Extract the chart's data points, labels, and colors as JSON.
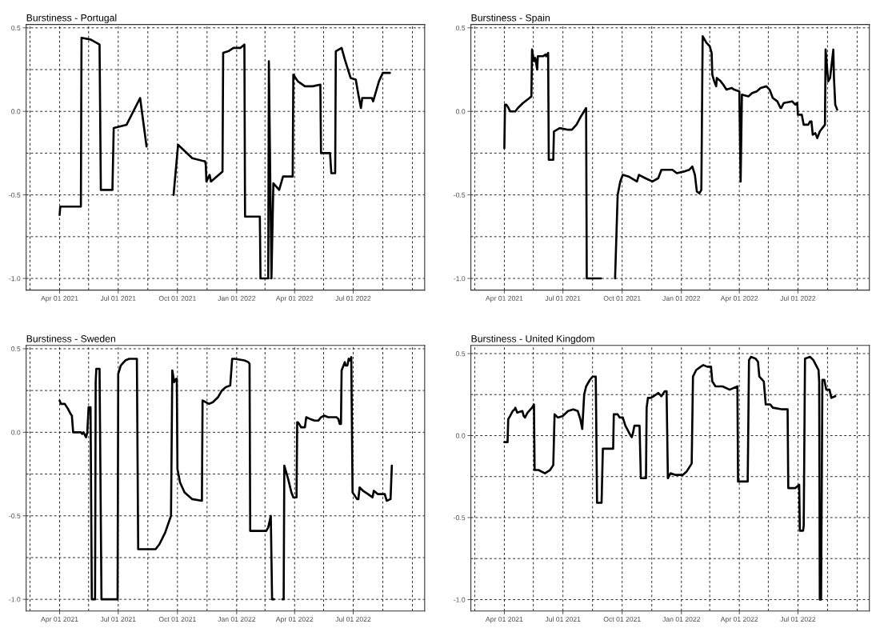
{
  "chart_data": [
    {
      "type": "line",
      "title": "Burstiness - Portugal",
      "color": "#000000",
      "grid": true,
      "line_style": "solid",
      "marker": "none",
      "xlim": [
        "2021-02-08",
        "2022-10-20"
      ],
      "ylim": [
        -1.07,
        0.52
      ],
      "xticks": [
        {
          "value": "2021-02-14",
          "label": null
        },
        {
          "value": "2021-04-01",
          "label": "Apr 01 2021"
        },
        {
          "value": "2021-05-16",
          "label": null
        },
        {
          "value": "2021-07-01",
          "label": "Jul 01 2021"
        },
        {
          "value": "2021-08-16",
          "label": null
        },
        {
          "value": "2021-10-01",
          "label": "Oct 01 2021"
        },
        {
          "value": "2021-11-16",
          "label": null
        },
        {
          "value": "2022-01-01",
          "label": "Jan 01 2022"
        },
        {
          "value": "2022-02-14",
          "label": null
        },
        {
          "value": "2022-04-01",
          "label": "Apr 01 2022"
        },
        {
          "value": "2022-05-16",
          "label": null
        },
        {
          "value": "2022-07-01",
          "label": "Jul 01 2022"
        },
        {
          "value": "2022-08-16",
          "label": null
        },
        {
          "value": "2022-10-01",
          "label": null
        }
      ],
      "yticks": [
        {
          "value": -1.0,
          "label": "-1.0"
        },
        {
          "value": -0.75,
          "label": null
        },
        {
          "value": -0.5,
          "label": "-0.5"
        },
        {
          "value": -0.25,
          "label": null
        },
        {
          "value": 0.0,
          "label": "0.0"
        },
        {
          "value": 0.25,
          "label": null
        },
        {
          "value": 0.5,
          "label": "0.5"
        }
      ],
      "x": [
        "2021-04-01",
        "2021-04-02",
        "2021-05-04",
        "2021-05-05",
        "2021-05-19",
        "2021-06-02",
        "2021-06-04",
        "2021-06-22",
        "2021-06-24",
        "2021-07-14",
        "2021-08-04",
        "2021-08-14",
        "2021-09-01",
        "2021-09-25",
        "2021-10-02",
        "2021-10-24",
        "2021-11-13",
        "2021-11-14",
        "2021-11-15",
        "2021-11-20",
        "2021-11-22",
        "2021-12-10",
        "2021-12-11",
        "2021-12-19",
        "2021-12-27",
        "2022-01-07",
        "2022-01-13",
        "2022-01-14",
        "2022-02-06",
        "2022-02-07",
        "2022-02-19",
        "2022-02-20",
        "2022-02-24",
        "2022-02-27",
        "2022-03-08",
        "2022-03-14",
        "2022-03-29",
        "2022-03-30",
        "2022-04-06",
        "2022-04-17",
        "2022-04-29",
        "2022-05-11",
        "2022-05-12",
        "2022-05-26",
        "2022-05-28",
        "2022-06-03",
        "2022-06-04",
        "2022-06-13",
        "2022-06-18",
        "2022-06-27",
        "2022-07-05",
        "2022-07-09",
        "2022-07-13",
        "2022-07-15",
        "2022-07-30",
        "2022-08-01",
        "2022-08-10",
        "2022-08-16",
        "2022-08-27"
      ],
      "values": [
        -0.62,
        -0.57,
        -0.57,
        0.44,
        0.43,
        0.4,
        -0.47,
        -0.47,
        -0.1,
        -0.08,
        0.08,
        -0.21,
        null,
        -0.5,
        -0.2,
        -0.28,
        -0.3,
        -0.32,
        -0.42,
        -0.38,
        -0.42,
        -0.36,
        0.35,
        0.36,
        0.38,
        0.38,
        0.4,
        -0.63,
        -0.63,
        -1.0,
        -1.0,
        0.3,
        -1.0,
        -0.43,
        -0.47,
        -0.39,
        -0.39,
        0.22,
        0.18,
        0.15,
        0.15,
        0.16,
        -0.25,
        -0.25,
        -0.37,
        -0.37,
        0.36,
        0.38,
        0.31,
        0.2,
        0.19,
        0.1,
        0.02,
        0.08,
        0.08,
        0.06,
        0.18,
        0.23,
        0.23
      ]
    },
    {
      "type": "line",
      "title": "Burstiness - Spain",
      "color": "#000000",
      "grid": true,
      "line_style": "solid",
      "marker": "none",
      "xlim": [
        "2021-02-08",
        "2022-10-20"
      ],
      "ylim": [
        -1.07,
        0.52
      ],
      "xticks": [
        {
          "value": "2021-02-14",
          "label": null
        },
        {
          "value": "2021-04-01",
          "label": "Apr 01 2021"
        },
        {
          "value": "2021-05-16",
          "label": null
        },
        {
          "value": "2021-07-01",
          "label": "Jul 01 2021"
        },
        {
          "value": "2021-08-16",
          "label": null
        },
        {
          "value": "2021-10-01",
          "label": "Oct 01 2021"
        },
        {
          "value": "2021-11-16",
          "label": null
        },
        {
          "value": "2022-01-01",
          "label": "Jan 01 2022"
        },
        {
          "value": "2022-02-14",
          "label": null
        },
        {
          "value": "2022-04-01",
          "label": "Apr 01 2022"
        },
        {
          "value": "2022-05-16",
          "label": null
        },
        {
          "value": "2022-07-01",
          "label": "Jul 01 2022"
        },
        {
          "value": "2022-08-16",
          "label": null
        },
        {
          "value": "2022-10-01",
          "label": null
        }
      ],
      "yticks": [
        {
          "value": -1.0,
          "label": "-1.0"
        },
        {
          "value": -0.75,
          "label": null
        },
        {
          "value": -0.5,
          "label": "-0.5"
        },
        {
          "value": -0.25,
          "label": null
        },
        {
          "value": 0.0,
          "label": "0.0"
        },
        {
          "value": 0.25,
          "label": null
        },
        {
          "value": 0.5,
          "label": "0.5"
        }
      ],
      "x": [
        "2021-04-01",
        "2021-04-02",
        "2021-04-04",
        "2021-04-06",
        "2021-04-10",
        "2021-04-18",
        "2021-04-22",
        "2021-04-30",
        "2021-05-10",
        "2021-05-13",
        "2021-05-14",
        "2021-05-17",
        "2021-05-19",
        "2021-05-22",
        "2021-05-23",
        "2021-05-31",
        "2021-06-04",
        "2021-06-05",
        "2021-06-08",
        "2021-06-09",
        "2021-06-16",
        "2021-06-17",
        "2021-06-26",
        "2021-07-09",
        "2021-07-15",
        "2021-07-22",
        "2021-07-29",
        "2021-08-06",
        "2021-08-07",
        "2021-08-29",
        "2021-09-10",
        "2021-09-20",
        "2021-09-24",
        "2021-09-28",
        "2021-10-02",
        "2021-10-11",
        "2021-10-24",
        "2021-10-27",
        "2021-11-06",
        "2021-11-17",
        "2021-11-26",
        "2021-12-01",
        "2021-12-18",
        "2021-12-25",
        "2022-01-05",
        "2022-01-13",
        "2022-01-18",
        "2022-01-22",
        "2022-01-25",
        "2022-01-29",
        "2022-02-01",
        "2022-02-03",
        "2022-02-09",
        "2022-02-14",
        "2022-02-17",
        "2022-02-18",
        "2022-02-21",
        "2022-02-24",
        "2022-02-25",
        "2022-03-03",
        "2022-03-07",
        "2022-03-12",
        "2022-03-20",
        "2022-03-24",
        "2022-04-01",
        "2022-04-03",
        "2022-04-05",
        "2022-04-15",
        "2022-04-21",
        "2022-04-28",
        "2022-05-04",
        "2022-05-13",
        "2022-05-18",
        "2022-05-23",
        "2022-05-30",
        "2022-06-04",
        "2022-06-05",
        "2022-06-09",
        "2022-06-22",
        "2022-06-27",
        "2022-06-29",
        "2022-06-30",
        "2022-07-01",
        "2022-07-07",
        "2022-07-10",
        "2022-07-17",
        "2022-07-20",
        "2022-07-22",
        "2022-07-24",
        "2022-07-28",
        "2022-07-31",
        "2022-08-04",
        "2022-08-12",
        "2022-08-13",
        "2022-08-17",
        "2022-08-20",
        "2022-08-25",
        "2022-08-26",
        "2022-08-28",
        "2022-08-31"
      ],
      "values": [
        -0.22,
        0.04,
        0.04,
        0.03,
        0.0,
        0.0,
        0.02,
        0.05,
        0.08,
        0.09,
        0.37,
        0.3,
        0.32,
        0.25,
        0.33,
        0.33,
        0.34,
        0.33,
        0.35,
        -0.29,
        -0.29,
        -0.12,
        -0.1,
        -0.11,
        -0.11,
        -0.08,
        -0.03,
        0.02,
        -1.0,
        -1.0,
        null,
        -1.0,
        -0.5,
        -0.42,
        -0.38,
        -0.39,
        -0.42,
        -0.38,
        -0.4,
        -0.42,
        -0.4,
        -0.35,
        -0.35,
        -0.37,
        -0.36,
        -0.35,
        -0.33,
        -0.38,
        -0.48,
        -0.49,
        -0.47,
        0.45,
        0.41,
        0.39,
        0.35,
        0.22,
        0.18,
        0.15,
        0.2,
        0.18,
        0.16,
        0.13,
        0.14,
        0.13,
        0.12,
        -0.42,
        0.1,
        0.09,
        0.11,
        0.12,
        0.14,
        0.15,
        0.13,
        0.08,
        0.06,
        0.02,
        0.02,
        0.05,
        0.06,
        0.04,
        0.05,
        0.05,
        -0.02,
        -0.02,
        -0.08,
        -0.08,
        -0.06,
        -0.06,
        -0.14,
        -0.13,
        -0.16,
        -0.12,
        -0.08,
        0.37,
        0.18,
        0.2,
        0.37,
        0.2,
        0.04,
        0.01
      ]
    },
    {
      "type": "line",
      "title": "Burstiness - Sweden",
      "color": "#000000",
      "grid": true,
      "line_style": "solid",
      "marker": "none",
      "xlim": [
        "2021-02-08",
        "2022-10-20"
      ],
      "ylim": [
        -1.07,
        0.52
      ],
      "xticks": [
        {
          "value": "2021-02-14",
          "label": null
        },
        {
          "value": "2021-04-01",
          "label": "Apr 01 2021"
        },
        {
          "value": "2021-05-16",
          "label": null
        },
        {
          "value": "2021-07-01",
          "label": "Jul 01 2021"
        },
        {
          "value": "2021-08-16",
          "label": null
        },
        {
          "value": "2021-10-01",
          "label": "Oct 01 2021"
        },
        {
          "value": "2021-11-16",
          "label": null
        },
        {
          "value": "2022-01-01",
          "label": "Jan 01 2022"
        },
        {
          "value": "2022-02-14",
          "label": null
        },
        {
          "value": "2022-04-01",
          "label": "Apr 01 2022"
        },
        {
          "value": "2022-05-16",
          "label": null
        },
        {
          "value": "2022-07-01",
          "label": "Jul 01 2022"
        },
        {
          "value": "2022-08-16",
          "label": null
        },
        {
          "value": "2022-10-01",
          "label": null
        }
      ],
      "yticks": [
        {
          "value": -1.0,
          "label": "-1.0"
        },
        {
          "value": -0.75,
          "label": null
        },
        {
          "value": -0.5,
          "label": "-0.5"
        },
        {
          "value": -0.25,
          "label": null
        },
        {
          "value": 0.0,
          "label": "0.0"
        },
        {
          "value": 0.25,
          "label": null
        },
        {
          "value": 0.5,
          "label": "0.5"
        }
      ],
      "x": [
        "2021-04-01",
        "2021-04-03",
        "2021-04-09",
        "2021-04-14",
        "2021-04-18",
        "2021-04-20",
        "2021-04-22",
        "2021-05-04",
        "2021-05-06",
        "2021-05-08",
        "2021-05-12",
        "2021-05-14",
        "2021-05-16",
        "2021-05-19",
        "2021-05-21",
        "2021-05-26",
        "2021-05-27",
        "2021-05-28",
        "2021-06-02",
        "2021-06-05",
        "2021-06-30",
        "2021-07-01",
        "2021-07-05",
        "2021-07-12",
        "2021-07-18",
        "2021-07-30",
        "2021-08-01",
        "2021-08-28",
        "2021-09-03",
        "2021-09-12",
        "2021-09-21",
        "2021-09-23",
        "2021-09-26",
        "2021-09-29",
        "2021-09-30",
        "2021-10-01",
        "2021-10-05",
        "2021-10-12",
        "2021-10-24",
        "2021-11-08",
        "2021-11-09",
        "2021-11-19",
        "2021-11-25",
        "2021-12-03",
        "2021-12-09",
        "2021-12-15",
        "2021-12-22",
        "2021-12-25",
        "2021-12-29",
        "2022-01-13",
        "2022-01-19",
        "2022-01-21",
        "2022-01-22",
        "2022-02-16",
        "2022-02-19",
        "2022-02-23",
        "2022-02-25",
        "2022-02-28",
        "2022-03-06",
        "2022-03-13",
        "2022-03-15",
        "2022-03-16",
        "2022-03-22",
        "2022-03-27",
        "2022-03-30",
        "2022-04-04",
        "2022-04-05",
        "2022-04-06",
        "2022-04-08",
        "2022-04-11",
        "2022-04-17",
        "2022-04-19",
        "2022-04-25",
        "2022-05-02",
        "2022-05-08",
        "2022-05-12",
        "2022-05-17",
        "2022-05-23",
        "2022-06-05",
        "2022-06-08",
        "2022-06-10",
        "2022-06-12",
        "2022-06-13",
        "2022-06-18",
        "2022-06-19",
        "2022-06-22",
        "2022-06-24",
        "2022-06-26",
        "2022-06-28",
        "2022-06-30",
        "2022-07-07",
        "2022-07-09",
        "2022-07-11",
        "2022-07-16",
        "2022-07-24",
        "2022-07-31",
        "2022-08-02",
        "2022-08-08",
        "2022-08-19",
        "2022-08-22",
        "2022-08-28",
        "2022-08-30"
      ],
      "values": [
        0.19,
        0.17,
        0.17,
        0.14,
        0.11,
        0.1,
        0.0,
        0.0,
        -0.01,
        0.0,
        -0.03,
        0.0,
        0.15,
        0.15,
        -1.0,
        -1.0,
        0.3,
        0.38,
        0.38,
        -1.0,
        -1.0,
        0.35,
        0.4,
        0.43,
        0.44,
        0.44,
        -0.7,
        -0.7,
        -0.67,
        -0.6,
        -0.5,
        0.37,
        0.3,
        0.32,
        0.32,
        -0.22,
        -0.3,
        -0.36,
        -0.4,
        -0.41,
        0.19,
        0.17,
        0.18,
        0.21,
        0.25,
        0.27,
        0.28,
        0.44,
        0.44,
        0.43,
        0.42,
        0.41,
        -0.59,
        -0.59,
        -0.57,
        -0.5,
        -1.0,
        -1.0,
        null,
        -1.0,
        -1.0,
        -0.2,
        -0.28,
        -0.36,
        -0.39,
        -0.39,
        0.06,
        0.06,
        0.05,
        0.03,
        0.03,
        0.09,
        0.08,
        0.07,
        0.07,
        0.09,
        0.1,
        0.09,
        0.09,
        0.08,
        0.05,
        0.05,
        0.37,
        0.42,
        0.4,
        0.4,
        0.44,
        0.43,
        0.45,
        -0.36,
        -0.4,
        -0.4,
        -0.33,
        -0.35,
        -0.37,
        -0.39,
        -0.35,
        -0.37,
        -0.37,
        -0.41,
        -0.4,
        -0.2
      ]
    },
    {
      "type": "line",
      "title": "Burstiness - United Kingdom",
      "color": "#000000",
      "grid": true,
      "line_style": "solid",
      "marker": "none",
      "xlim": [
        "2021-02-08",
        "2022-10-20"
      ],
      "ylim": [
        -1.07,
        0.55
      ],
      "xticks": [
        {
          "value": "2021-02-14",
          "label": null
        },
        {
          "value": "2021-04-01",
          "label": "Apr 01 2021"
        },
        {
          "value": "2021-05-16",
          "label": null
        },
        {
          "value": "2021-07-01",
          "label": "Jul 01 2021"
        },
        {
          "value": "2021-08-16",
          "label": null
        },
        {
          "value": "2021-10-01",
          "label": "Oct 01 2021"
        },
        {
          "value": "2021-11-16",
          "label": null
        },
        {
          "value": "2022-01-01",
          "label": "Jan 01 2022"
        },
        {
          "value": "2022-02-14",
          "label": null
        },
        {
          "value": "2022-04-01",
          "label": "Apr 01 2022"
        },
        {
          "value": "2022-05-16",
          "label": null
        },
        {
          "value": "2022-07-01",
          "label": "Jul 01 2022"
        },
        {
          "value": "2022-08-16",
          "label": null
        },
        {
          "value": "2022-10-01",
          "label": null
        }
      ],
      "yticks": [
        {
          "value": -1.0,
          "label": "-1.0"
        },
        {
          "value": -0.75,
          "label": null
        },
        {
          "value": -0.5,
          "label": "-0.5"
        },
        {
          "value": -0.25,
          "label": null
        },
        {
          "value": 0.0,
          "label": "0.0"
        },
        {
          "value": 0.25,
          "label": null
        },
        {
          "value": 0.5,
          "label": "0.5"
        }
      ],
      "x": [
        "2021-04-01",
        "2021-04-06",
        "2021-04-07",
        "2021-04-10",
        "2021-04-14",
        "2021-04-17",
        "2021-04-18",
        "2021-04-21",
        "2021-04-29",
        "2021-05-01",
        "2021-05-03",
        "2021-05-07",
        "2021-05-14",
        "2021-05-17",
        "2021-05-18",
        "2021-05-24",
        "2021-06-03",
        "2021-06-11",
        "2021-06-16",
        "2021-06-18",
        "2021-06-23",
        "2021-07-01",
        "2021-07-09",
        "2021-07-17",
        "2021-07-24",
        "2021-07-28",
        "2021-07-31",
        "2021-08-03",
        "2021-08-06",
        "2021-08-12",
        "2021-08-16",
        "2021-08-21",
        "2021-08-23",
        "2021-08-30",
        "2021-09-01",
        "2021-09-17",
        "2021-09-18",
        "2021-09-24",
        "2021-09-27",
        "2021-10-02",
        "2021-10-06",
        "2021-10-14",
        "2021-10-16",
        "2021-10-18",
        "2021-10-20",
        "2021-10-28",
        "2021-10-30",
        "2021-11-07",
        "2021-11-08",
        "2021-11-10",
        "2021-11-14",
        "2021-11-19",
        "2021-11-26",
        "2021-12-01",
        "2021-12-06",
        "2021-12-09",
        "2021-12-11",
        "2021-12-15",
        "2021-12-23",
        "2022-01-03",
        "2022-01-09",
        "2022-01-17",
        "2022-01-19",
        "2022-01-24",
        "2022-01-31",
        "2022-02-04",
        "2022-02-10",
        "2022-02-16",
        "2022-02-18",
        "2022-02-23",
        "2022-03-06",
        "2022-03-17",
        "2022-03-29",
        "2022-03-30",
        "2022-04-14",
        "2022-04-16",
        "2022-04-19",
        "2022-04-26",
        "2022-04-30",
        "2022-05-02",
        "2022-05-09",
        "2022-05-12",
        "2022-05-19",
        "2022-05-23",
        "2022-06-07",
        "2022-06-15",
        "2022-06-16",
        "2022-06-27",
        "2022-07-03",
        "2022-07-04",
        "2022-07-09",
        "2022-07-10",
        "2022-07-12",
        "2022-07-20",
        "2022-07-25",
        "2022-07-29",
        "2022-08-02",
        "2022-08-03",
        "2022-08-04",
        "2022-08-06",
        "2022-08-08",
        "2022-08-11",
        "2022-08-14",
        "2022-08-19",
        "2022-08-22",
        "2022-08-28"
      ],
      "values": [
        -0.04,
        -0.04,
        0.1,
        0.12,
        0.15,
        0.16,
        0.17,
        0.14,
        0.15,
        0.12,
        0.11,
        0.14,
        0.17,
        0.19,
        -0.21,
        -0.21,
        -0.23,
        -0.21,
        -0.18,
        0.13,
        0.11,
        0.12,
        0.15,
        0.16,
        0.15,
        0.1,
        0.04,
        0.25,
        0.3,
        0.34,
        0.36,
        0.36,
        -0.41,
        -0.41,
        -0.08,
        -0.08,
        0.13,
        0.13,
        0.11,
        0.11,
        0.06,
        0.0,
        -0.01,
        0.02,
        0.06,
        0.06,
        -0.26,
        -0.26,
        0.17,
        0.23,
        0.23,
        0.24,
        0.26,
        0.24,
        0.27,
        0.27,
        -0.26,
        -0.23,
        -0.24,
        -0.24,
        -0.22,
        -0.17,
        0.36,
        0.4,
        0.42,
        0.43,
        0.42,
        0.42,
        0.33,
        0.3,
        0.3,
        0.28,
        0.3,
        -0.28,
        -0.28,
        0.46,
        0.48,
        0.47,
        0.45,
        0.36,
        0.33,
        0.19,
        0.19,
        0.17,
        0.16,
        0.16,
        -0.32,
        -0.32,
        -0.3,
        -0.58,
        -0.58,
        -0.55,
        0.47,
        0.48,
        0.46,
        0.43,
        0.4,
        0.33,
        -1.0,
        -1.0,
        0.34,
        0.34,
        0.28,
        0.28,
        0.23,
        0.24
      ]
    }
  ]
}
